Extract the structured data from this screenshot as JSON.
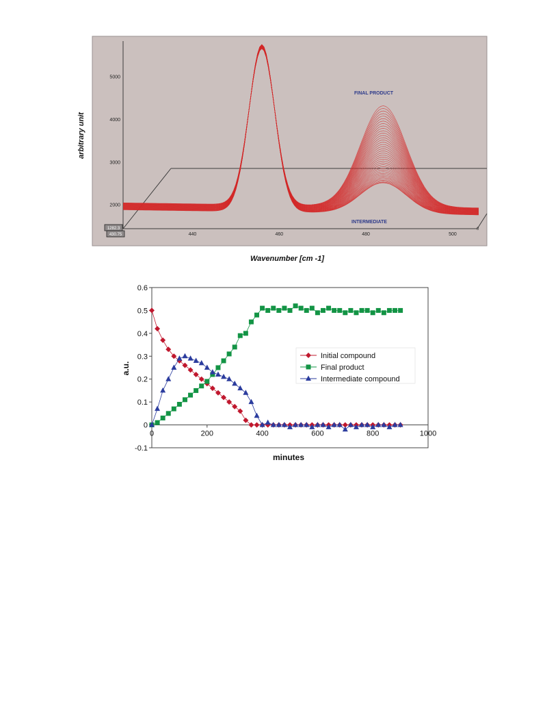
{
  "chart_data": [
    {
      "type": "line",
      "title": "",
      "xlabel": "Wavenumber [cm -1]",
      "ylabel": "arbitrary unit",
      "x_ticks": [
        "440",
        "460",
        "480",
        "500"
      ],
      "y_ticks": [
        "2000",
        "3000",
        "4000",
        "5000"
      ],
      "xlim": [
        424,
        506
      ],
      "ylim": [
        1450,
        5750
      ],
      "depth_labels": [
        "1282.3",
        "430.75"
      ],
      "depth_axis_label": "0",
      "annotations": [
        "FINAL PRODUCT",
        "INTERMEDIATE"
      ],
      "series_count": 40,
      "peak_main": {
        "center": 456,
        "max_height": 5700
      },
      "peak_secondary": {
        "center": 484,
        "height_first": 2500,
        "height_last": 4400
      },
      "colors": {
        "background": "#cbc0be",
        "lines": "#d42a2a",
        "annotation": "#2d3a8a",
        "floor": "#3c3c3c"
      }
    },
    {
      "type": "scatter",
      "title": "",
      "xlabel": "minutes",
      "ylabel": "a.u.",
      "xlim": [
        0,
        1000
      ],
      "ylim": [
        -0.1,
        0.6
      ],
      "x_ticks": [
        "0",
        "200",
        "400",
        "600",
        "800",
        "1000"
      ],
      "y_ticks": [
        "-0.1",
        "0",
        "0.1",
        "0.2",
        "0.3",
        "0.4",
        "0.5",
        "0.6"
      ],
      "legend_position": "right",
      "x": [
        0,
        20,
        40,
        60,
        80,
        100,
        120,
        140,
        160,
        180,
        200,
        220,
        240,
        260,
        280,
        300,
        320,
        340,
        360,
        380,
        400,
        420,
        440,
        460,
        480,
        500,
        520,
        540,
        560,
        580,
        600,
        620,
        640,
        660,
        680,
        700,
        720,
        740,
        760,
        780,
        800,
        820,
        840,
        860,
        880,
        900
      ],
      "series": [
        {
          "name": "Initial compound",
          "color": "#c0182e",
          "marker": "diamond",
          "values": [
            0.5,
            0.42,
            0.37,
            0.33,
            0.3,
            0.28,
            0.26,
            0.24,
            0.22,
            0.2,
            0.18,
            0.16,
            0.14,
            0.12,
            0.1,
            0.08,
            0.06,
            0.02,
            0.0,
            0.0,
            0.0,
            0.0,
            0.0,
            0.0,
            0.0,
            0.0,
            0.0,
            0.0,
            0.0,
            0.0,
            0.0,
            0.0,
            0.0,
            0.0,
            0.0,
            0.0,
            0.0,
            0.0,
            0.0,
            0.0,
            0.0,
            0.0,
            0.0,
            0.0,
            0.0,
            0.0
          ]
        },
        {
          "name": "Final product",
          "color": "#139445",
          "marker": "square",
          "values": [
            0.0,
            0.01,
            0.03,
            0.05,
            0.07,
            0.09,
            0.11,
            0.13,
            0.15,
            0.17,
            0.19,
            0.22,
            0.25,
            0.28,
            0.31,
            0.34,
            0.39,
            0.4,
            0.45,
            0.48,
            0.51,
            0.5,
            0.51,
            0.5,
            0.51,
            0.5,
            0.52,
            0.51,
            0.5,
            0.51,
            0.49,
            0.5,
            0.51,
            0.5,
            0.5,
            0.49,
            0.5,
            0.49,
            0.5,
            0.5,
            0.49,
            0.5,
            0.49,
            0.5,
            0.5,
            0.5
          ]
        },
        {
          "name": "Intermediate compound",
          "color": "#2b3c9e",
          "marker": "triangle",
          "values": [
            0.0,
            0.07,
            0.15,
            0.2,
            0.25,
            0.29,
            0.3,
            0.29,
            0.28,
            0.27,
            0.25,
            0.23,
            0.22,
            0.21,
            0.2,
            0.18,
            0.16,
            0.14,
            0.1,
            0.04,
            0.0,
            0.01,
            0.0,
            0.0,
            0.0,
            -0.01,
            0.0,
            0.0,
            0.0,
            -0.01,
            0.0,
            0.0,
            -0.01,
            0.0,
            0.0,
            -0.02,
            0.0,
            -0.01,
            0.0,
            0.0,
            -0.01,
            0.0,
            0.0,
            -0.01,
            0.0,
            0.0
          ]
        }
      ]
    }
  ]
}
